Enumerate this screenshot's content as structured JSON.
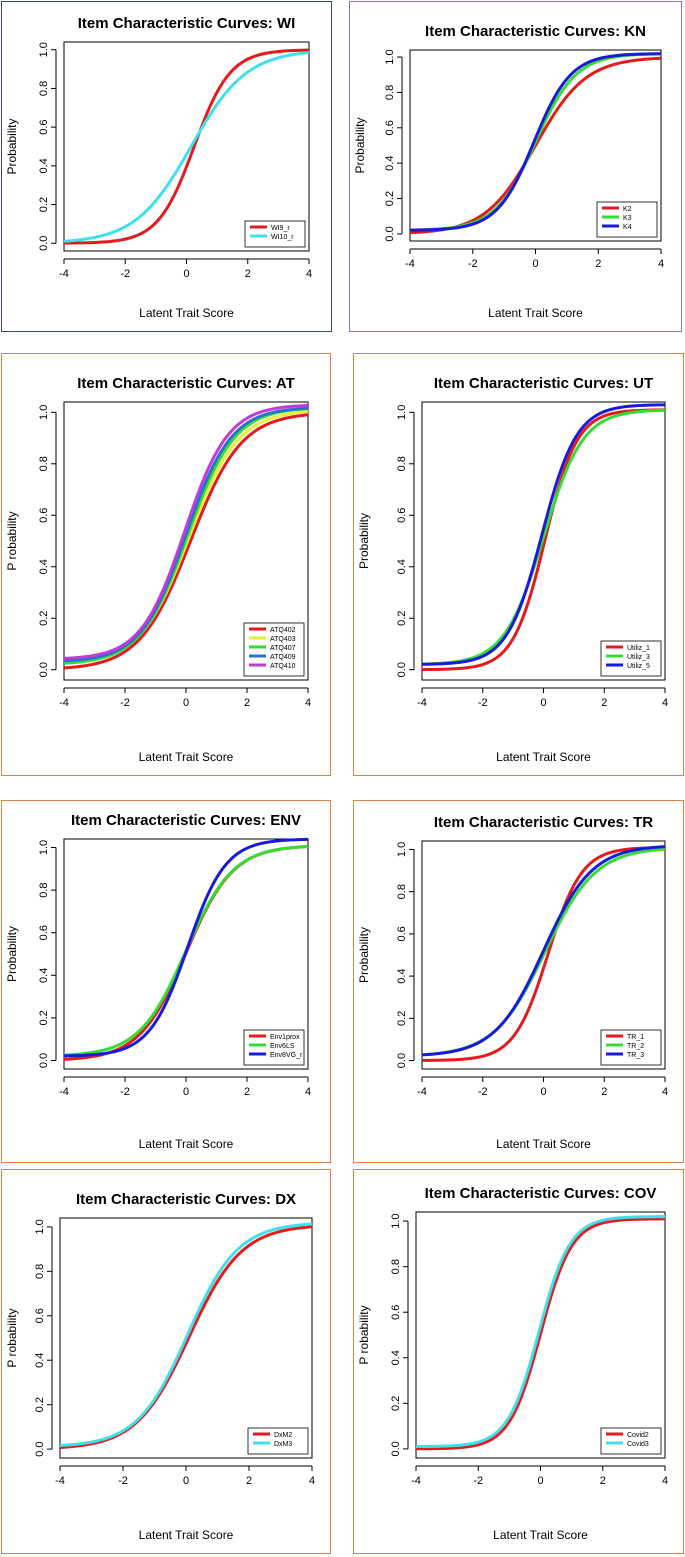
{
  "page": {
    "background": "#ffffff"
  },
  "chart_data": [
    {
      "id": "wi",
      "type": "line",
      "title": "Item Characteristic Curves: WI",
      "xlabel": "Latent Trait Score",
      "ylabel": "Probability",
      "xlim": [
        -4,
        4
      ],
      "ylim": [
        0,
        1
      ],
      "xticks": [
        "-4",
        "-2",
        "0",
        "2",
        "4"
      ],
      "yticks": [
        "0.0",
        "0.2",
        "0.4",
        "0.6",
        "0.8",
        "1.0"
      ],
      "border_color": "#3b4a6b",
      "legend_position": "bottom-right",
      "series": [
        {
          "name": "WI9_r",
          "color": "#e41a1c",
          "a": 1.7,
          "b": 0.25,
          "c": 0.0,
          "d": 1.0
        },
        {
          "name": "WI10_r",
          "color": "#3fe0ea",
          "a": 1.1,
          "b": 0.15,
          "c": 0.0,
          "d": 1.0
        }
      ]
    },
    {
      "id": "kn",
      "type": "line",
      "title": "Item Characteristic Curves: KN",
      "xlabel": "Latent Trait Score",
      "ylabel": "Probability",
      "xlim": [
        -4,
        4
      ],
      "ylim": [
        0,
        1
      ],
      "xticks": [
        "-4",
        "-2",
        "0",
        "2",
        "4"
      ],
      "yticks": [
        "0.0",
        "0.2",
        "0.4",
        "0.6",
        "0.8",
        "1.0"
      ],
      "border_color": "#8e6fc0",
      "legend_position": "bottom-right",
      "series": [
        {
          "name": "K2",
          "color": "#e41a1c",
          "a": 1.25,
          "b": 0.0,
          "c": 0.0,
          "d": 1.0
        },
        {
          "name": "K3",
          "color": "#33dd33",
          "a": 1.55,
          "b": 0.0,
          "c": 0.02,
          "d": 1.02
        },
        {
          "name": "K4",
          "color": "#1a1adb",
          "a": 1.7,
          "b": -0.05,
          "c": 0.02,
          "d": 1.02
        }
      ]
    },
    {
      "id": "at",
      "type": "line",
      "title": "Item Characteristic Curves: AT",
      "xlabel": "Latent Trait Score",
      "ylabel": "P robability",
      "xlim": [
        -4,
        4
      ],
      "ylim": [
        0,
        1
      ],
      "xticks": [
        "-4",
        "-2",
        "0",
        "2",
        "4"
      ],
      "yticks": [
        "0.0",
        "0.2",
        "0.4",
        "0.6",
        "0.8",
        "1.0"
      ],
      "border_color": "#d9834a",
      "legend_position": "bottom-right",
      "series": [
        {
          "name": "ATQ402",
          "color": "#e41a1c",
          "a": 1.2,
          "b": 0.15,
          "c": 0.0,
          "d": 1.0
        },
        {
          "name": "ATQ403",
          "color": "#e8ee3a",
          "a": 1.25,
          "b": 0.1,
          "c": 0.02,
          "d": 1.01
        },
        {
          "name": "ATQ407",
          "color": "#33dd33",
          "a": 1.3,
          "b": 0.05,
          "c": 0.02,
          "d": 1.02
        },
        {
          "name": "ATQ409",
          "color": "#2b6fd6",
          "a": 1.35,
          "b": 0.0,
          "c": 0.03,
          "d": 1.02
        },
        {
          "name": "ATQ410",
          "color": "#c03bd8",
          "a": 1.4,
          "b": -0.05,
          "c": 0.04,
          "d": 1.03
        }
      ]
    },
    {
      "id": "ut",
      "type": "line",
      "title": "Item Characteristic Curves: UT",
      "xlabel": "Latent Trait Score",
      "ylabel": "Probability",
      "xlim": [
        -4,
        4
      ],
      "ylim": [
        0,
        1
      ],
      "xticks": [
        "-4",
        "-2",
        "0",
        "2",
        "4"
      ],
      "yticks": [
        "0.0",
        "0.2",
        "0.4",
        "0.6",
        "0.8",
        "1.0"
      ],
      "border_color": "#d9834a",
      "legend_position": "bottom-right",
      "series": [
        {
          "name": "Utiliz_1",
          "color": "#e41a1c",
          "a": 1.9,
          "b": 0.05,
          "c": 0.0,
          "d": 1.01
        },
        {
          "name": "Utiliz_3",
          "color": "#33dd33",
          "a": 1.55,
          "b": 0.0,
          "c": 0.02,
          "d": 1.01
        },
        {
          "name": "Utiliz_5",
          "color": "#1a1adb",
          "a": 1.75,
          "b": -0.05,
          "c": 0.02,
          "d": 1.03
        }
      ]
    },
    {
      "id": "env",
      "type": "line",
      "title": "Item Characteristic Curves: ENV",
      "xlabel": "Latent Trait Score",
      "ylabel": "Probability",
      "xlim": [
        -4,
        4
      ],
      "ylim": [
        0,
        1
      ],
      "xticks": [
        "-4",
        "-2",
        "0",
        "2",
        "4"
      ],
      "yticks": [
        "0.0",
        "0.2",
        "0.4",
        "0.6",
        "0.8",
        "1.0"
      ],
      "border_color": "#d9834a",
      "legend_position": "bottom-right",
      "series": [
        {
          "name": "Env1prox",
          "color": "#e41a1c",
          "a": 1.3,
          "b": 0.0,
          "c": 0.0,
          "d": 1.01
        },
        {
          "name": "Env6LS",
          "color": "#33dd33",
          "a": 1.3,
          "b": 0.0,
          "c": 0.02,
          "d": 1.01
        },
        {
          "name": "Env8VG_r",
          "color": "#1a1adb",
          "a": 1.6,
          "b": 0.05,
          "c": 0.02,
          "d": 1.04
        }
      ]
    },
    {
      "id": "tr",
      "type": "line",
      "title": "Item Characteristic Curves: TR",
      "xlabel": "Latent Trait Score",
      "ylabel": "Probability",
      "xlim": [
        -4,
        4
      ],
      "ylim": [
        0,
        1
      ],
      "xticks": [
        "-4",
        "-2",
        "0",
        "2",
        "4"
      ],
      "yticks": [
        "0.0",
        "0.2",
        "0.4",
        "0.6",
        "0.8",
        "1.0"
      ],
      "border_color": "#d9834a",
      "legend_position": "bottom-right",
      "series": [
        {
          "name": "TR_1",
          "color": "#e41a1c",
          "a": 1.8,
          "b": 0.15,
          "c": 0.0,
          "d": 1.01
        },
        {
          "name": "TR_2",
          "color": "#33dd33",
          "a": 1.2,
          "b": 0.05,
          "c": 0.02,
          "d": 1.01
        },
        {
          "name": "TR_3",
          "color": "#1a1adb",
          "a": 1.25,
          "b": 0.0,
          "c": 0.02,
          "d": 1.02
        }
      ]
    },
    {
      "id": "dx",
      "type": "line",
      "title": "Item Characteristic Curves: DX",
      "xlabel": "Latent Trait Score",
      "ylabel": "P robability",
      "xlim": [
        -4,
        4
      ],
      "ylim": [
        0,
        1
      ],
      "xticks": [
        "-4",
        "-2",
        "0",
        "2",
        "4"
      ],
      "yticks": [
        "0.0",
        "0.2",
        "0.4",
        "0.6",
        "0.8",
        "1.0"
      ],
      "border_color": "#d9834a",
      "legend_position": "bottom-right",
      "series": [
        {
          "name": "DxM2",
          "color": "#e41a1c",
          "a": 1.2,
          "b": 0.1,
          "c": 0.0,
          "d": 1.01
        },
        {
          "name": "DxM3",
          "color": "#3fe0ea",
          "a": 1.25,
          "b": 0.05,
          "c": 0.01,
          "d": 1.02
        }
      ]
    },
    {
      "id": "cov",
      "type": "line",
      "title": "Item Characteristic Curves: COV",
      "xlabel": "Latent Trait Score",
      "ylabel": "P robability",
      "xlim": [
        -4,
        4
      ],
      "ylim": [
        0,
        1
      ],
      "xticks": [
        "-4",
        "-2",
        "0",
        "2",
        "4"
      ],
      "yticks": [
        "0.0",
        "0.2",
        "0.4",
        "0.6",
        "0.8",
        "1.0"
      ],
      "border_color": "#d9834a",
      "legend_position": "bottom-right",
      "series": [
        {
          "name": "Covid2",
          "color": "#e41a1c",
          "a": 2.0,
          "b": 0.0,
          "c": 0.0,
          "d": 1.01
        },
        {
          "name": "Covid3",
          "color": "#3fe0ea",
          "a": 2.0,
          "b": -0.05,
          "c": 0.01,
          "d": 1.02
        }
      ]
    }
  ]
}
